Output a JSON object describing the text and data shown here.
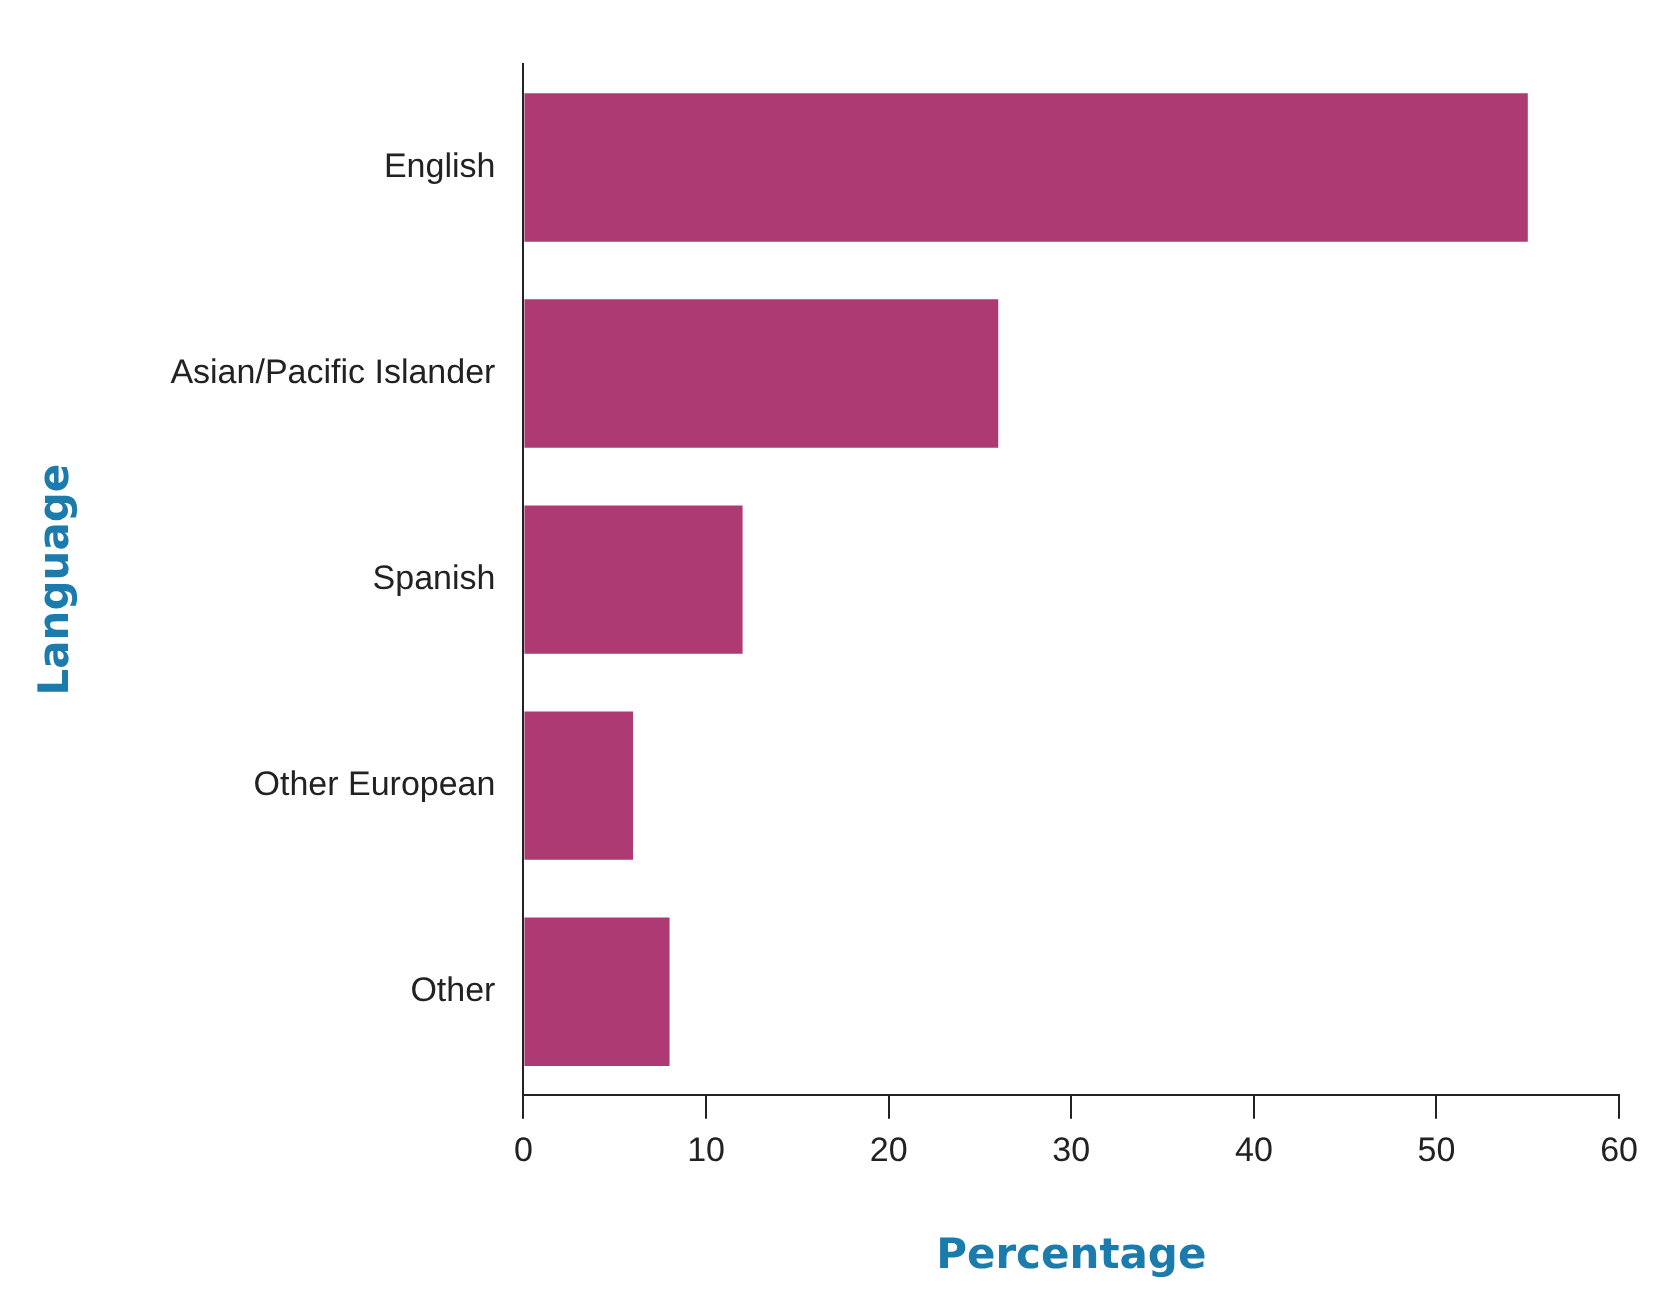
{
  "chart_data": {
    "type": "bar",
    "orientation": "horizontal",
    "xlabel": "Percentage",
    "ylabel": "Language",
    "categories": [
      "English",
      "Asian/Pacific Islander",
      "Spanish",
      "Other European",
      "Other"
    ],
    "values": [
      55,
      26,
      12,
      6,
      8
    ],
    "color": "#ae3a74",
    "xlim": [
      0,
      60
    ],
    "xticks": [
      0,
      10,
      20,
      30,
      40,
      50,
      60
    ],
    "grid": false,
    "legend": false
  }
}
